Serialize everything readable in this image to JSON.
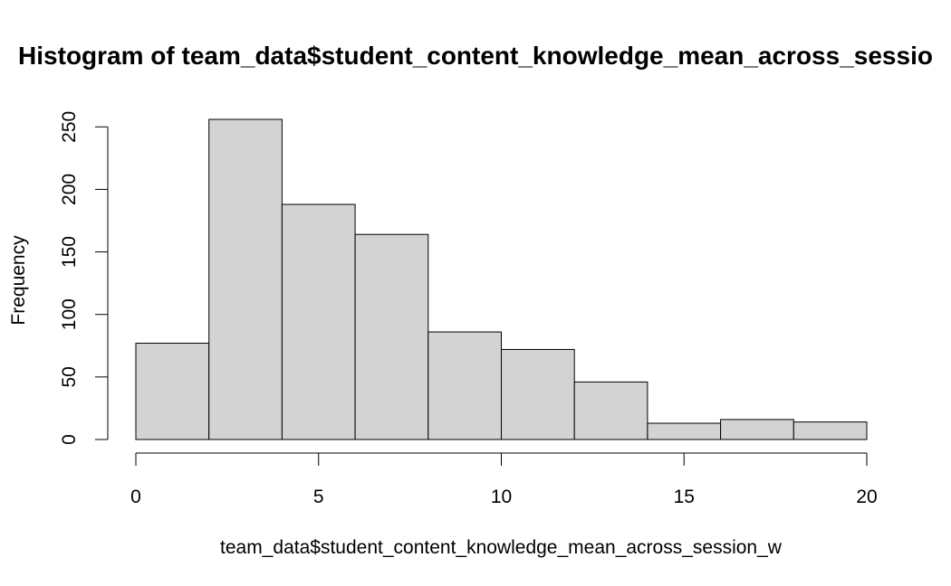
{
  "chart_data": {
    "type": "bar",
    "title": "Histogram of team_data$student_content_knowledge_mean_across_sessio",
    "xlabel": "team_data$student_content_knowledge_mean_across_session_w",
    "ylabel": "Frequency",
    "bins": [
      {
        "x0": 0,
        "x1": 2,
        "count": 77
      },
      {
        "x0": 2,
        "x1": 4,
        "count": 256
      },
      {
        "x0": 4,
        "x1": 6,
        "count": 188
      },
      {
        "x0": 6,
        "x1": 8,
        "count": 164
      },
      {
        "x0": 8,
        "x1": 10,
        "count": 86
      },
      {
        "x0": 10,
        "x1": 12,
        "count": 72
      },
      {
        "x0": 12,
        "x1": 14,
        "count": 46
      },
      {
        "x0": 14,
        "x1": 16,
        "count": 13
      },
      {
        "x0": 16,
        "x1": 18,
        "count": 16
      },
      {
        "x0": 18,
        "x1": 20,
        "count": 14
      }
    ],
    "x_ticks": [
      0,
      5,
      10,
      15,
      20
    ],
    "y_ticks": [
      0,
      50,
      100,
      150,
      200,
      250
    ],
    "xlim": [
      0,
      20
    ],
    "ylim": [
      0,
      256
    ],
    "bar_fill": "#d3d3d3",
    "bar_stroke": "#000000",
    "grid": false
  }
}
